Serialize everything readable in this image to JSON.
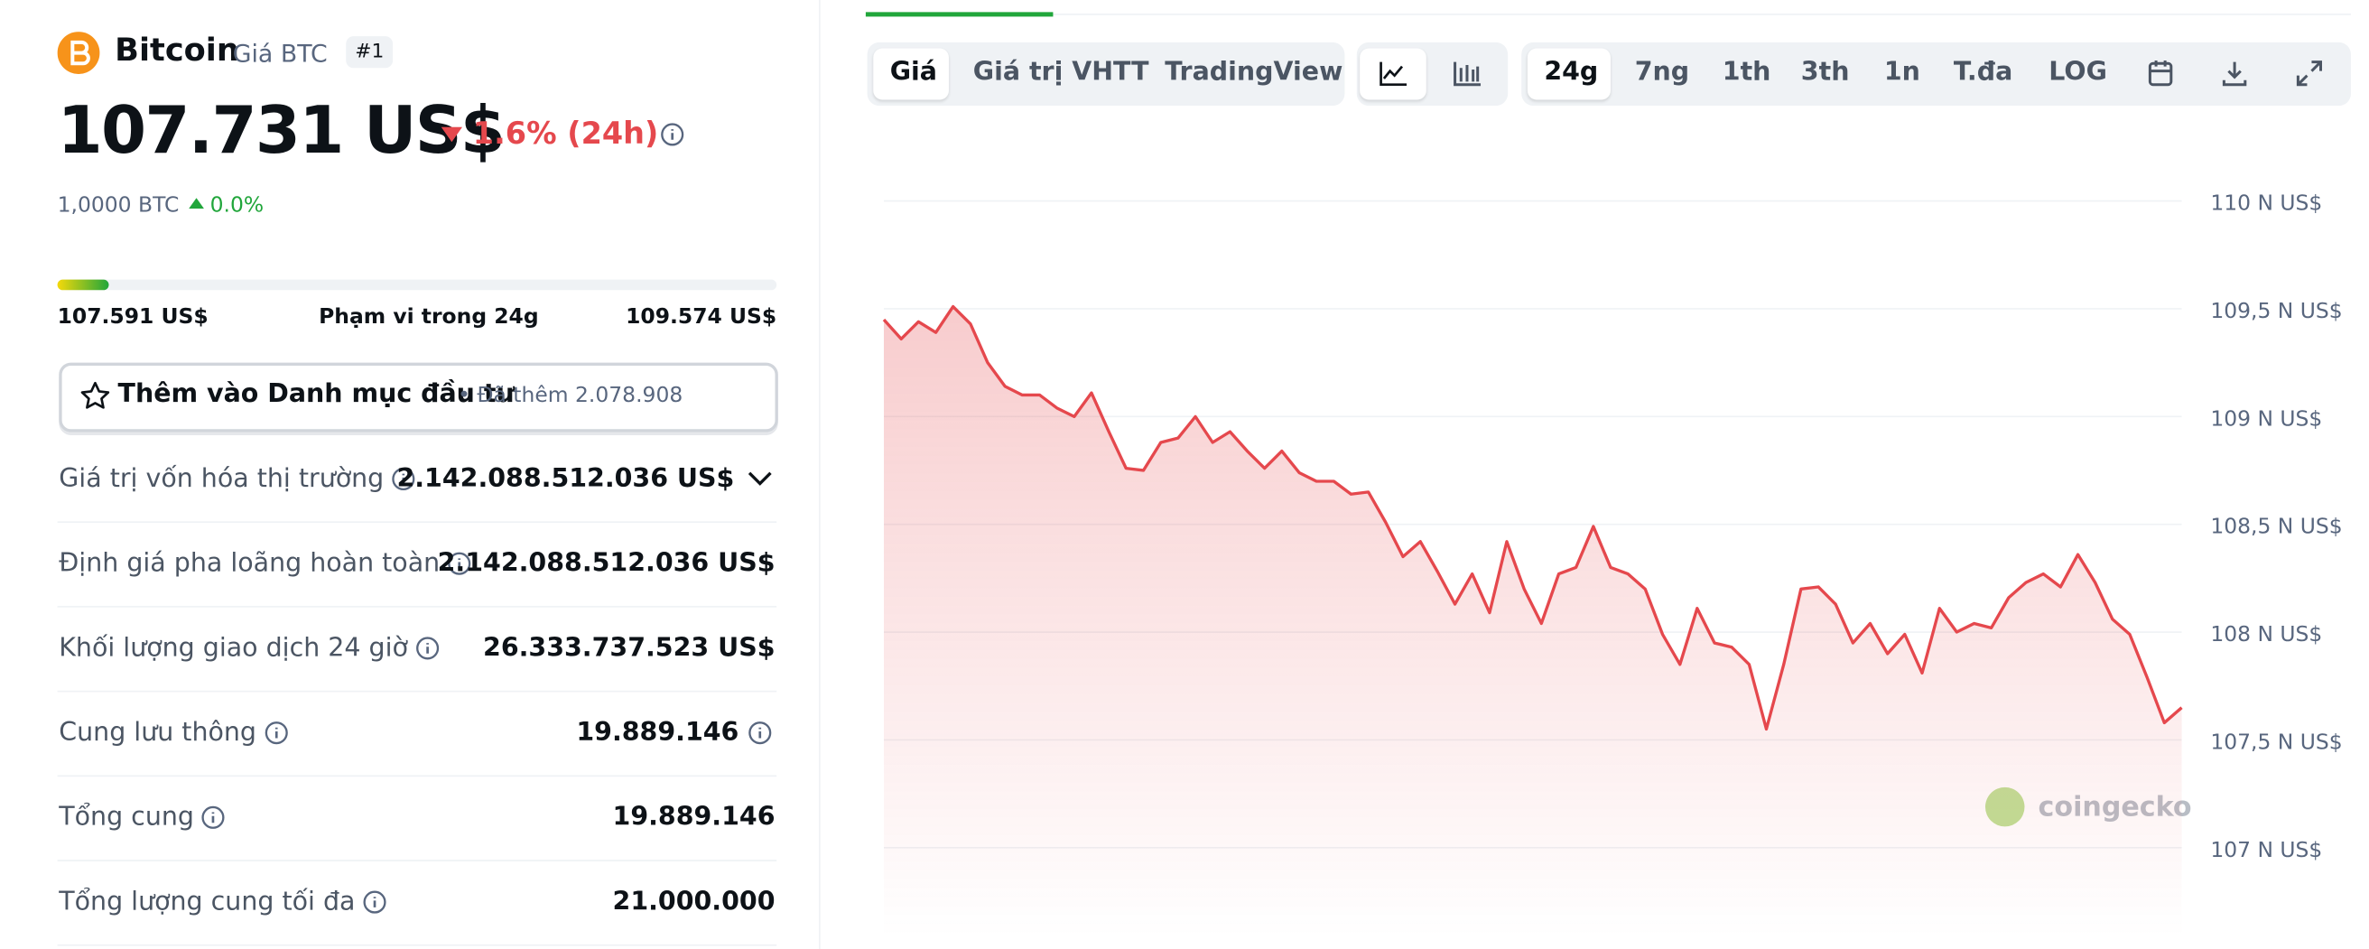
{
  "coin": {
    "name": "Bitcoin",
    "symbol": "Giá BTC",
    "rank": "#1",
    "price": "107.731 US$",
    "change": "1.6% (24h)",
    "btc_price": "1,0000 BTC",
    "btc_change": "0.0%"
  },
  "range": {
    "low": "107.591 US$",
    "label": "Phạm vi trong 24g",
    "high": "109.574 US$"
  },
  "watchlist": {
    "label": "Thêm vào Danh mục đầu tư",
    "added": "• Đã thêm 2.078.908"
  },
  "stats": [
    {
      "label": "Giá trị vốn hóa thị trường",
      "value": "2.142.088.512.036 US$"
    },
    {
      "label": "Định giá pha loãng hoàn toàn",
      "value": "2.142.088.512.036 US$"
    },
    {
      "label": "Khối lượng giao dịch 24 giờ",
      "value": "26.333.737.523 US$"
    },
    {
      "label": "Cung lưu thông",
      "value": "19.889.146"
    },
    {
      "label": "Tổng cung",
      "value": "19.889.146"
    },
    {
      "label": "Tổng lượng cung tối đa",
      "value": "21.000.000"
    }
  ],
  "tabs": [
    "Giá",
    "Giá trị VHTT",
    "TradingView"
  ],
  "ranges": [
    "24g",
    "7ng",
    "1th",
    "3th",
    "1n",
    "T.đa",
    "LOG"
  ],
  "chart": {
    "type": "line",
    "color": "#e5484d",
    "watermark": "coingecko",
    "grid": true,
    "ylim": [
      107,
      110
    ],
    "yticks": [
      {
        "value": 110,
        "label": "110 N US$"
      },
      {
        "value": 109.5,
        "label": "109,5 N US$"
      },
      {
        "value": 109,
        "label": "109 N US$"
      },
      {
        "value": 108.5,
        "label": "108,5 N US$"
      },
      {
        "value": 108,
        "label": "108 N US$"
      },
      {
        "value": 107.5,
        "label": "107,5 N US$"
      },
      {
        "value": 107,
        "label": "107 N US$"
      }
    ],
    "values": [
      109.45,
      109.36,
      109.44,
      109.39,
      109.51,
      109.43,
      109.25,
      109.14,
      109.1,
      109.1,
      109.04,
      109.0,
      109.11,
      108.93,
      108.76,
      108.75,
      108.88,
      108.9,
      109.0,
      108.88,
      108.93,
      108.84,
      108.76,
      108.84,
      108.74,
      108.7,
      108.7,
      108.64,
      108.65,
      108.51,
      108.35,
      108.42,
      108.28,
      108.13,
      108.27,
      108.09,
      108.42,
      108.2,
      108.04,
      108.27,
      108.3,
      108.49,
      108.3,
      108.27,
      108.2,
      107.99,
      107.85,
      108.11,
      107.95,
      107.93,
      107.85,
      107.55,
      107.85,
      108.2,
      108.21,
      108.13,
      107.95,
      108.04,
      107.9,
      107.99,
      107.81,
      108.11,
      108.0,
      108.04,
      108.02,
      108.16,
      108.23,
      108.27,
      108.21,
      108.36,
      108.23,
      108.06,
      107.99,
      107.79,
      107.58,
      107.65
    ]
  }
}
